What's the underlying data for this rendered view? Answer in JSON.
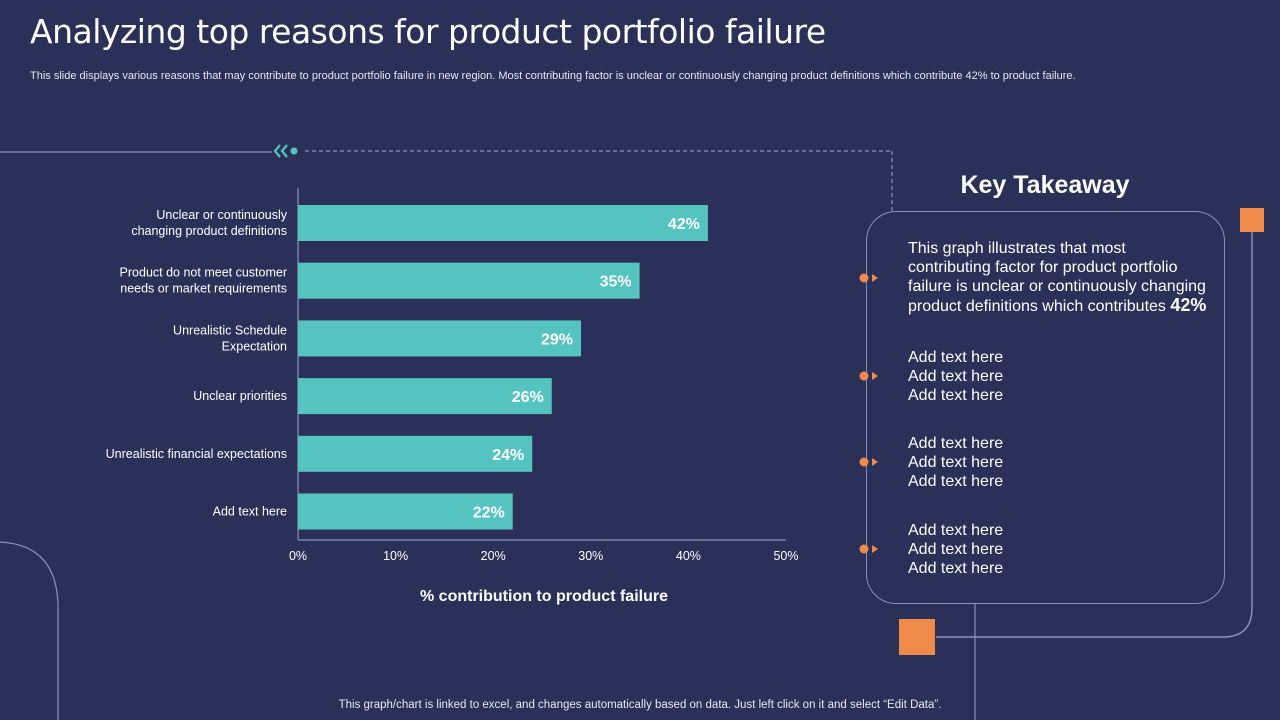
{
  "slide": {
    "title": "Analyzing top reasons for product portfolio failure",
    "subtitle": "This slide displays various reasons that may contribute to product portfolio failure in new region. Most contributing factor is unclear or continuously changing product definitions which contribute 42% to product failure.",
    "footer": "This graph/chart is linked to excel,  and changes automatically based on data. Just left click on it and select “Edit Data”."
  },
  "chart_data": {
    "type": "bar",
    "orientation": "horizontal",
    "categories": [
      [
        "Unclear or continuously",
        "changing product definitions"
      ],
      [
        "Product do not meet customer",
        "needs or market requirements"
      ],
      [
        "Unrealistic Schedule",
        "Expectation"
      ],
      [
        "Unclear priorities"
      ],
      [
        "Unrealistic financial expectations"
      ],
      [
        "Add text here"
      ]
    ],
    "values": [
      42,
      35,
      29,
      26,
      24,
      22
    ],
    "value_labels": [
      "42%",
      "35%",
      "29%",
      "26%",
      "24%",
      "22%"
    ],
    "x_ticks": [
      "0%",
      "10%",
      "20%",
      "30%",
      "40%",
      "50%"
    ],
    "xlim": [
      0,
      50
    ],
    "xlabel": "% contribution to product failure",
    "ylabel": "",
    "grid": false,
    "bar_color": "#55c3bf"
  },
  "takeaway": {
    "heading": "Key Takeaway",
    "main_text": "This graph illustrates that most contributing factor for product portfolio failure is unclear or continuously  changing product definitions which contributes",
    "main_highlight": "42%",
    "placeholder_lines": [
      "Add text here",
      "Add text here",
      "Add text here"
    ]
  },
  "colors": {
    "background": "#2a3058",
    "accent_orange": "#f08a4b",
    "accent_teal": "#55c3bf",
    "line": "#8b90b8"
  }
}
